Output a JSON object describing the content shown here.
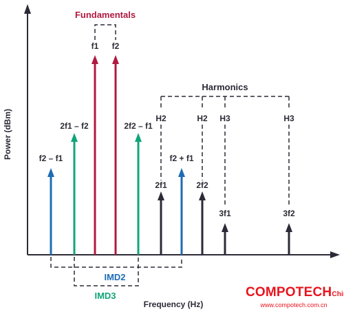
{
  "axes": {
    "y_label": "Power (dBm)",
    "x_label": "Frequency (Hz)"
  },
  "groups": {
    "fundamentals": "Fundamentals",
    "harmonics": "Harmonics",
    "imd2": "IMD2",
    "imd3": "IMD3"
  },
  "labels": {
    "f1": "f1",
    "f2": "f2",
    "f2_minus_f1": "f2 – f1",
    "two_f1_minus_f2": "2f1 – f2",
    "two_f2_minus_f1": "2f2 – f1",
    "f2_plus_f1": "f2 + f1",
    "two_f1": "2f1",
    "two_f2": "2f2",
    "three_f1": "3f1",
    "three_f2": "3f2",
    "h2_a": "H2",
    "h2_b": "H2",
    "h3_a": "H3",
    "h3_b": "H3"
  },
  "colors": {
    "fundamental": "#b0193f",
    "imd2": "#1d6cb4",
    "imd3": "#10a578",
    "harmonic": "#2b2a36",
    "axis": "#2b2a36"
  },
  "watermark": {
    "brand": "COMPOTECH",
    "suffix": "China",
    "url": "www.compotech.com.cn"
  }
}
